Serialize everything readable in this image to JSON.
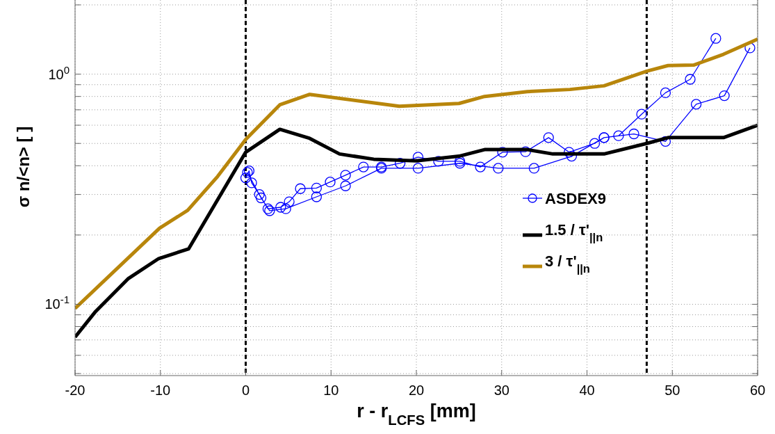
{
  "chart_data": {
    "type": "line",
    "xlabel": "r - r$_{LCFS}$   [mm]",
    "ylabel": "σ n/<n>   [ ]",
    "log": "y",
    "grid": true,
    "legend": "right",
    "xlim": [
      -20,
      60
    ],
    "xticks": [
      -20,
      -10,
      0,
      10,
      20,
      30,
      40,
      50,
      60
    ],
    "ylim": [
      0.049,
      2.1
    ],
    "yticks": [
      {
        "value": 0.05,
        "label": null
      },
      {
        "value": 0.06,
        "label": null
      },
      {
        "value": 0.07,
        "label": null
      },
      {
        "value": 0.08,
        "label": null
      },
      {
        "value": 0.09,
        "label": null
      },
      {
        "value": 0.1,
        "label": "10$^{-1}$"
      },
      {
        "value": 0.2,
        "label": null
      },
      {
        "value": 0.3,
        "label": null
      },
      {
        "value": 0.4,
        "label": null
      },
      {
        "value": 0.5,
        "label": null
      },
      {
        "value": 0.6,
        "label": null
      },
      {
        "value": 0.7,
        "label": null
      },
      {
        "value": 0.8,
        "label": null
      },
      {
        "value": 0.9,
        "label": null
      },
      {
        "value": 1,
        "label": "10$^{0}$"
      },
      {
        "value": 2,
        "label": null
      }
    ],
    "ref_lines": [
      {
        "axis": "x",
        "value": 0,
        "color": "#000000",
        "line_style": "dashed"
      },
      {
        "axis": "x",
        "value": 47,
        "color": "#000000",
        "line_style": "dashed"
      }
    ],
    "series": [
      {
        "name": "ASDEX9",
        "color": "#0000ff",
        "marker": "circle",
        "x": [
          0,
          0.4,
          0.7,
          1.6,
          2.6,
          4.1,
          5.1,
          6.4,
          8.3,
          9.9,
          11.7,
          13.8,
          15.9,
          18.1,
          20.2,
          22.6,
          25.1,
          27.5,
          30.1,
          32.8,
          35.5,
          37.9,
          40.9,
          42,
          43.7,
          46.4,
          49.2,
          52.1,
          55.1,
          null,
          0.2,
          1.8,
          2.8,
          4.7,
          8.3,
          11.7,
          15.9,
          20.2,
          25.1,
          29.6,
          33.8,
          38.2,
          42,
          45.5,
          49.2,
          52.8,
          56.1,
          59.1
        ],
        "values": [
          0.354,
          0.38,
          0.337,
          0.3,
          0.26,
          0.264,
          0.279,
          0.318,
          0.32,
          0.34,
          0.364,
          0.395,
          0.395,
          0.41,
          0.436,
          0.418,
          0.418,
          0.395,
          0.458,
          0.46,
          0.53,
          0.458,
          0.5,
          0.53,
          0.54,
          0.67,
          0.83,
          0.95,
          1.43,
          null,
          0.374,
          0.29,
          0.255,
          0.26,
          0.293,
          0.327,
          0.39,
          0.39,
          0.41,
          0.39,
          0.39,
          0.44,
          0.53,
          0.55,
          0.51,
          0.74,
          0.806,
          1.3
        ]
      },
      {
        "name": "1.5 / τ'$_{||n}$",
        "color": "#000000",
        "marker": "none",
        "x": [
          -20,
          -17.6,
          -13.8,
          -10.2,
          -6.7,
          0,
          4,
          7.5,
          11,
          15,
          20,
          25,
          28,
          33,
          36,
          42,
          47,
          49.5,
          56,
          60
        ],
        "values": [
          0.072,
          0.093,
          0.129,
          0.158,
          0.174,
          0.458,
          0.576,
          0.526,
          0.45,
          0.427,
          0.42,
          0.44,
          0.47,
          0.47,
          0.45,
          0.45,
          0.5,
          0.53,
          0.53,
          0.6
        ]
      },
      {
        "name": "3 / τ'$_{||n}$",
        "color": "#b8860b",
        "marker": "none",
        "x": [
          -20,
          -10.1,
          -6.8,
          -3.3,
          0,
          4,
          7.5,
          18,
          25,
          28,
          33,
          38,
          42,
          47,
          49.5,
          52.5,
          56,
          60
        ],
        "values": [
          0.096,
          0.214,
          0.256,
          0.359,
          0.52,
          0.736,
          0.817,
          0.725,
          0.746,
          0.8,
          0.84,
          0.858,
          0.89,
          1.03,
          1.09,
          1.095,
          1.22,
          1.42
        ]
      }
    ]
  }
}
